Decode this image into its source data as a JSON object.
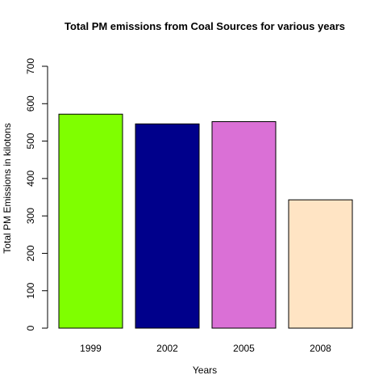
{
  "chart_data": {
    "type": "bar",
    "title": "Total PM emissions from Coal Sources for various years",
    "xlabel": "Years",
    "ylabel": "Total PM Emissions in kilotons",
    "categories": [
      "1999",
      "2002",
      "2005",
      "2008"
    ],
    "values": [
      572,
      546,
      552,
      343
    ],
    "colors": [
      "#7FFF00",
      "#00008B",
      "#DA70D6",
      "#FFE4C4"
    ],
    "ylim": [
      0,
      700
    ],
    "yticks": [
      "0",
      "100",
      "200",
      "300",
      "400",
      "500",
      "600",
      "700"
    ],
    "grid": false,
    "legend": "none"
  }
}
